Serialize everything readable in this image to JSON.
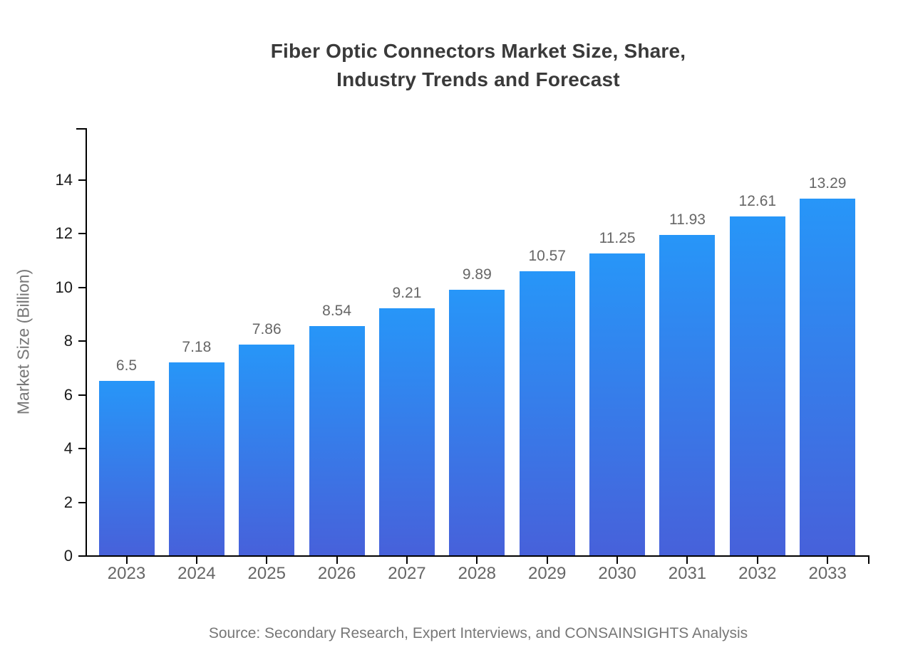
{
  "chart_data": {
    "type": "bar",
    "title_line1": "Fiber Optic Connectors Market Size, Share,",
    "title_line2": "Industry Trends and Forecast",
    "ylabel": "Market Size (Billion)",
    "xlabel": "",
    "categories": [
      "2023",
      "2024",
      "2025",
      "2026",
      "2027",
      "2028",
      "2029",
      "2030",
      "2031",
      "2032",
      "2033"
    ],
    "values": [
      6.5,
      7.18,
      7.86,
      8.54,
      9.21,
      9.89,
      10.57,
      11.25,
      11.93,
      12.61,
      13.29
    ],
    "value_labels": [
      "6.5",
      "7.18",
      "7.86",
      "8.54",
      "9.21",
      "9.89",
      "10.57",
      "11.25",
      "11.93",
      "12.61",
      "13.29"
    ],
    "y_ticks": [
      0,
      2,
      4,
      6,
      8,
      10,
      12,
      14
    ],
    "ylim": [
      0,
      15.9
    ],
    "grid": false,
    "legend_position": "none",
    "source_note": "Source: Secondary Research, Expert Interviews, and CONSAINSIGHTS Analysis",
    "colors": {
      "background": "#ffffff",
      "bar_gradient_top": "#2796f8",
      "bar_gradient_bottom": "#4761da",
      "axis": "#000000",
      "title": "#3a3a3a",
      "value_label": "#666666",
      "x_tick_label": "#666666",
      "y_tick_label": "#1a1a1a",
      "axis_title": "#777777",
      "source": "#777777"
    }
  }
}
